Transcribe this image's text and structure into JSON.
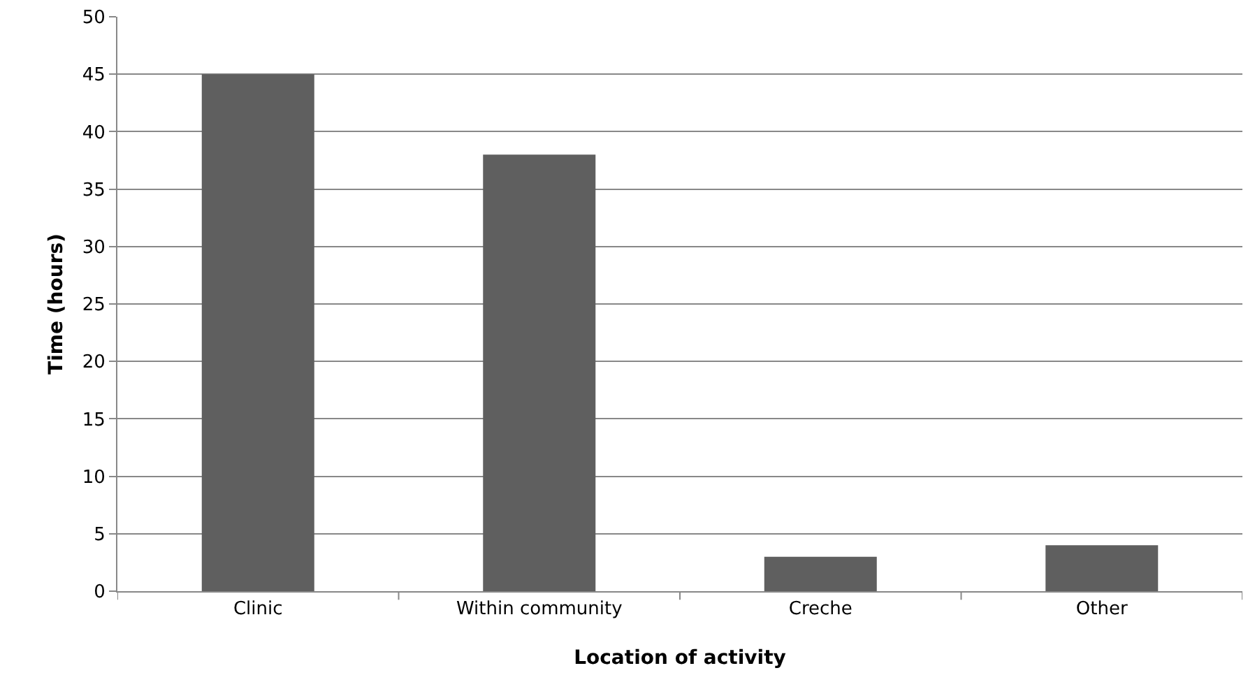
{
  "chart_data": {
    "type": "bar",
    "xlabel": "Location of activity",
    "ylabel": "Time (hours)",
    "categories": [
      "Clinic",
      "Within community",
      "Creche",
      "Other"
    ],
    "values": [
      45,
      38,
      3,
      4
    ],
    "color": "#5f5f5f",
    "ylim": [
      0,
      50
    ],
    "yticks": [
      0,
      5,
      10,
      15,
      20,
      25,
      30,
      35,
      40,
      45,
      50
    ],
    "grid": "y"
  }
}
